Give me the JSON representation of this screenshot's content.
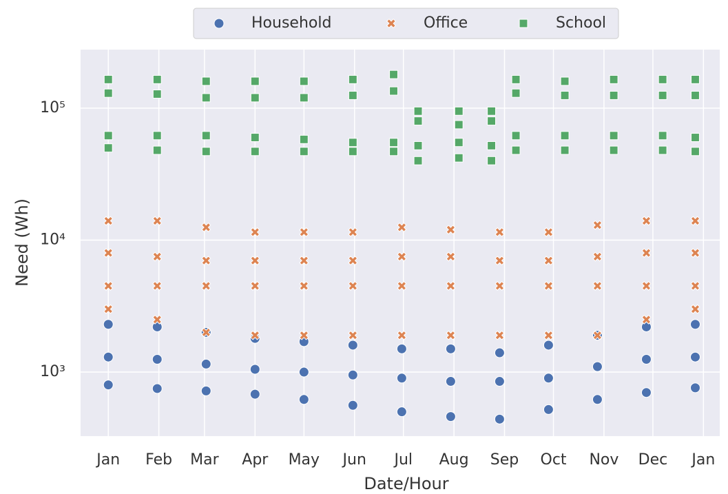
{
  "chart_data": {
    "type": "scatter",
    "xlabel": "Date/Hour",
    "ylabel": "Need (Wh)",
    "xlim": [
      -17,
      375
    ],
    "xticks": [
      {
        "value": 0,
        "label": "Jan"
      },
      {
        "value": 31,
        "label": "Feb"
      },
      {
        "value": 59,
        "label": "Mar"
      },
      {
        "value": 90,
        "label": "Apr"
      },
      {
        "value": 120,
        "label": "May"
      },
      {
        "value": 151,
        "label": "Jun"
      },
      {
        "value": 181,
        "label": "Jul"
      },
      {
        "value": 212,
        "label": "Aug"
      },
      {
        "value": 243,
        "label": "Sep"
      },
      {
        "value": 273,
        "label": "Oct"
      },
      {
        "value": 304,
        "label": "Nov"
      },
      {
        "value": 334,
        "label": "Dec"
      },
      {
        "value": 365,
        "label": "Jan"
      }
    ],
    "ylim": [
      327,
      278000
    ],
    "yscale": "log",
    "yticks": [
      {
        "value": 1000,
        "label": "10³"
      },
      {
        "value": 10000,
        "label": "10⁴"
      },
      {
        "value": 100000,
        "label": "10⁵"
      }
    ],
    "grid": true,
    "legend": "top",
    "series": [
      {
        "name": "Household",
        "color": "#4c72b0",
        "marker": "o",
        "x": [
          0,
          30,
          60,
          90,
          120,
          150,
          180,
          210,
          240,
          270,
          300,
          330,
          360,
          0,
          30,
          60,
          90,
          120,
          150,
          180,
          210,
          240,
          270,
          300,
          330,
          360,
          0,
          30,
          60,
          90,
          120,
          150,
          180,
          210,
          240,
          270,
          300,
          330,
          360
        ],
        "values": [
          2300,
          2200,
          2000,
          1800,
          1700,
          1600,
          1500,
          1500,
          1400,
          1600,
          1900,
          2200,
          2300,
          1300,
          1250,
          1150,
          1050,
          1000,
          950,
          900,
          850,
          850,
          900,
          1100,
          1250,
          1300,
          800,
          750,
          720,
          680,
          620,
          560,
          500,
          460,
          440,
          520,
          620,
          700,
          760
        ]
      },
      {
        "name": "Office",
        "color": "#dd8452",
        "marker": "x",
        "x": [
          0,
          30,
          60,
          90,
          120,
          150,
          180,
          210,
          240,
          270,
          300,
          330,
          360,
          0,
          30,
          60,
          90,
          120,
          150,
          180,
          210,
          240,
          270,
          300,
          330,
          360,
          0,
          30,
          60,
          90,
          120,
          150,
          180,
          210,
          240,
          270,
          300,
          330,
          360,
          0,
          30,
          60,
          90,
          120,
          150,
          180,
          210,
          240,
          270,
          300,
          330,
          360
        ],
        "values": [
          14000,
          14000,
          12500,
          11500,
          11500,
          11500,
          12500,
          12000,
          11500,
          11500,
          13000,
          14000,
          14000,
          8000,
          7500,
          7000,
          7000,
          7000,
          7000,
          7500,
          7500,
          7000,
          7000,
          7500,
          8000,
          8000,
          4500,
          4500,
          4500,
          4500,
          4500,
          4500,
          4500,
          4500,
          4500,
          4500,
          4500,
          4500,
          4500,
          3000,
          2500,
          2000,
          1900,
          1900,
          1900,
          1900,
          1900,
          1900,
          1900,
          1900,
          2500,
          3000
        ]
      },
      {
        "name": "School",
        "color": "#55a868",
        "marker": "s",
        "x": [
          0,
          30,
          60,
          90,
          120,
          150,
          175,
          190,
          215,
          235,
          250,
          280,
          310,
          340,
          360,
          0,
          30,
          60,
          90,
          120,
          150,
          175,
          190,
          215,
          235,
          250,
          280,
          310,
          340,
          360,
          0,
          30,
          60,
          90,
          120,
          150,
          175,
          190,
          215,
          235,
          250,
          280,
          310,
          340,
          360,
          0,
          30,
          60,
          90,
          120,
          150,
          175,
          190,
          215,
          235,
          250,
          280,
          310,
          340,
          360
        ],
        "values": [
          165000,
          165000,
          160000,
          160000,
          160000,
          165000,
          180000,
          95000,
          95000,
          95000,
          165000,
          160000,
          165000,
          165000,
          165000,
          130000,
          128000,
          120000,
          120000,
          120000,
          125000,
          135000,
          80000,
          75000,
          80000,
          130000,
          125000,
          125000,
          125000,
          125000,
          62000,
          62000,
          62000,
          60000,
          58000,
          55000,
          55000,
          52000,
          55000,
          52000,
          62000,
          62000,
          62000,
          62000,
          60000,
          50000,
          48000,
          47000,
          47000,
          47000,
          47000,
          47000,
          40000,
          42000,
          40000,
          48000,
          48000,
          48000,
          48000,
          47000
        ]
      }
    ]
  }
}
